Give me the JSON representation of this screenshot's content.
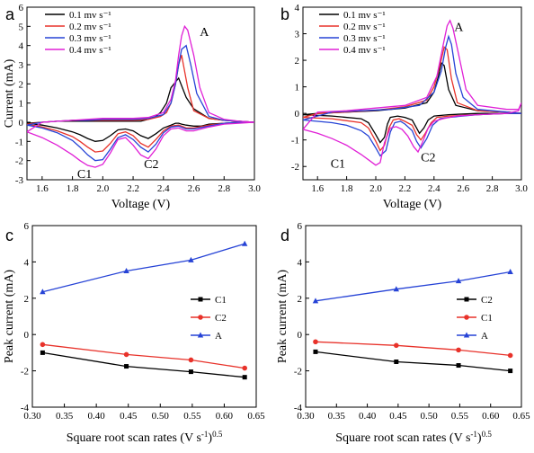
{
  "chart_data": [
    {
      "panel": "a",
      "type": "line",
      "xlabel": "Voltage (V)",
      "ylabel": "Current (mA)",
      "xlim": [
        1.5,
        3.0
      ],
      "ylim": [
        -3,
        6
      ],
      "xticks": [
        "1.6",
        "1.8",
        "2.0",
        "2.2",
        "2.4",
        "2.6",
        "2.8",
        "3.0"
      ],
      "yticks": [
        "-3",
        "-2",
        "-1",
        "0",
        "1",
        "2",
        "3",
        "4",
        "5",
        "6"
      ],
      "legend_position": "top-left",
      "annotations": [
        {
          "text": "A",
          "x": 2.67,
          "y": 4.5
        },
        {
          "text": "C1",
          "x": 1.88,
          "y": -2.9
        },
        {
          "text": "C2",
          "x": 2.32,
          "y": -2.4
        }
      ],
      "series": [
        {
          "name": "0.1 mv s⁻¹",
          "color": "#000000",
          "x": [
            1.5,
            1.6,
            1.7,
            1.8,
            1.85,
            1.9,
            1.95,
            2.0,
            2.05,
            2.1,
            2.15,
            2.2,
            2.25,
            2.3,
            2.35,
            2.4,
            2.45,
            2.48,
            2.5,
            2.52,
            2.55,
            2.6,
            2.65,
            2.7,
            2.8,
            2.9,
            3.0,
            2.9,
            2.8,
            2.7,
            2.6,
            2.55,
            2.5,
            2.45,
            2.42,
            2.38,
            2.34,
            2.3,
            2.25,
            2.2,
            2.1,
            2.0,
            1.9,
            1.8,
            1.7,
            1.6,
            1.5
          ],
          "y": [
            -0.05,
            -0.15,
            -0.3,
            -0.5,
            -0.65,
            -0.85,
            -1.0,
            -0.95,
            -0.7,
            -0.4,
            -0.35,
            -0.45,
            -0.7,
            -0.85,
            -0.6,
            -0.3,
            -0.15,
            -0.05,
            -0.05,
            -0.1,
            -0.15,
            -0.2,
            -0.2,
            -0.1,
            -0.05,
            0,
            0,
            0.05,
            0.1,
            0.2,
            0.7,
            1.3,
            2.3,
            1.8,
            1.0,
            0.5,
            0.25,
            0.15,
            0.05,
            0.05,
            0.05,
            0.05,
            0.05,
            0.05,
            0.05,
            0.0,
            -0.05
          ]
        },
        {
          "name": "0.2 mv s⁻¹",
          "color": "#e8322a",
          "x": [
            1.5,
            1.6,
            1.7,
            1.8,
            1.85,
            1.9,
            1.95,
            2.0,
            2.05,
            2.1,
            2.15,
            2.2,
            2.25,
            2.3,
            2.35,
            2.4,
            2.45,
            2.5,
            2.52,
            2.55,
            2.6,
            2.7,
            2.8,
            2.9,
            3.0,
            2.9,
            2.8,
            2.7,
            2.6,
            2.56,
            2.52,
            2.5,
            2.48,
            2.45,
            2.42,
            2.38,
            2.3,
            2.2,
            2.1,
            2.0,
            1.9,
            1.8,
            1.7,
            1.6,
            1.5
          ],
          "y": [
            -0.1,
            -0.25,
            -0.45,
            -0.75,
            -1.0,
            -1.3,
            -1.55,
            -1.5,
            -1.1,
            -0.6,
            -0.5,
            -0.7,
            -1.1,
            -1.3,
            -0.9,
            -0.45,
            -0.2,
            -0.15,
            -0.2,
            -0.3,
            -0.3,
            -0.15,
            -0.05,
            0,
            0,
            0.05,
            0.1,
            0.2,
            0.6,
            1.8,
            3.5,
            3.0,
            2.0,
            1.0,
            0.5,
            0.3,
            0.15,
            0.1,
            0.1,
            0.1,
            0.1,
            0.1,
            0.05,
            0.0,
            -0.1
          ]
        },
        {
          "name": "0.3 mv s⁻¹",
          "color": "#2643d6",
          "x": [
            1.5,
            1.6,
            1.7,
            1.8,
            1.85,
            1.9,
            1.95,
            2.0,
            2.05,
            2.1,
            2.15,
            2.2,
            2.25,
            2.3,
            2.35,
            2.4,
            2.45,
            2.5,
            2.55,
            2.6,
            2.7,
            2.8,
            2.9,
            3.0,
            2.9,
            2.8,
            2.7,
            2.62,
            2.58,
            2.55,
            2.52,
            2.5,
            2.48,
            2.45,
            2.4,
            2.3,
            2.2,
            2.1,
            2.0,
            1.9,
            1.8,
            1.7,
            1.6,
            1.5
          ],
          "y": [
            -0.15,
            -0.3,
            -0.55,
            -0.95,
            -1.3,
            -1.7,
            -2.0,
            -1.95,
            -1.4,
            -0.8,
            -0.65,
            -0.9,
            -1.3,
            -1.55,
            -1.15,
            -0.55,
            -0.25,
            -0.2,
            -0.35,
            -0.35,
            -0.2,
            -0.05,
            0,
            0,
            0.05,
            0.1,
            0.3,
            1.5,
            3.0,
            4.0,
            3.8,
            3.0,
            2.0,
            1.0,
            0.4,
            0.2,
            0.15,
            0.15,
            0.15,
            0.1,
            0.1,
            0.05,
            0.0,
            -0.15
          ]
        },
        {
          "name": "0.4 mv s⁻¹",
          "color": "#e020d6",
          "x": [
            1.5,
            1.6,
            1.7,
            1.8,
            1.85,
            1.9,
            1.95,
            2.0,
            2.05,
            2.1,
            2.15,
            2.2,
            2.25,
            2.3,
            2.35,
            2.4,
            2.45,
            2.5,
            2.55,
            2.6,
            2.7,
            2.8,
            2.9,
            3.0,
            2.9,
            2.8,
            2.7,
            2.64,
            2.6,
            2.56,
            2.54,
            2.52,
            2.5,
            2.48,
            2.45,
            2.4,
            2.3,
            2.2,
            2.1,
            2.0,
            1.9,
            1.8,
            1.7,
            1.6,
            1.5
          ],
          "y": [
            -0.5,
            -0.8,
            -1.2,
            -1.7,
            -2.0,
            -2.25,
            -2.35,
            -2.2,
            -1.6,
            -0.9,
            -0.8,
            -1.2,
            -1.7,
            -1.9,
            -1.4,
            -0.7,
            -0.35,
            -0.3,
            -0.45,
            -0.45,
            -0.25,
            -0.1,
            -0.05,
            0,
            0.05,
            0.15,
            0.5,
            1.8,
            3.5,
            4.8,
            5.0,
            4.5,
            3.5,
            2.2,
            1.2,
            0.5,
            0.25,
            0.2,
            0.2,
            0.2,
            0.15,
            0.1,
            0.05,
            0.0,
            -0.5
          ]
        }
      ]
    },
    {
      "panel": "b",
      "type": "line",
      "xlabel": "Voltage (V)",
      "ylabel": "",
      "xlim": [
        1.5,
        3.0
      ],
      "ylim": [
        -2.5,
        4
      ],
      "xticks": [
        "1.6",
        "1.8",
        "2.0",
        "2.2",
        "2.4",
        "2.6",
        "2.8",
        "3.0"
      ],
      "yticks": [
        "-2",
        "-1",
        "0",
        "1",
        "2",
        "3",
        "4"
      ],
      "legend_position": "top-left",
      "annotations": [
        {
          "text": "A",
          "x": 2.57,
          "y": 3.1
        },
        {
          "text": "C1",
          "x": 1.74,
          "y": -2.05
        },
        {
          "text": "C2",
          "x": 2.36,
          "y": -1.8
        }
      ],
      "series": [
        {
          "name": "0.1 mv s⁻¹",
          "color": "#000000",
          "x": [
            1.5,
            1.7,
            1.9,
            1.95,
            2.0,
            2.03,
            2.06,
            2.08,
            2.1,
            2.15,
            2.2,
            2.25,
            2.28,
            2.3,
            2.33,
            2.36,
            2.4,
            2.5,
            2.7,
            2.9,
            3.0,
            2.9,
            2.7,
            2.55,
            2.5,
            2.47,
            2.45,
            2.43,
            2.4,
            2.35,
            2.2,
            2.0,
            1.8,
            1.6,
            1.5
          ],
          "y": [
            -0.05,
            -0.1,
            -0.2,
            -0.35,
            -0.8,
            -1.1,
            -0.9,
            -0.4,
            -0.15,
            -0.1,
            -0.15,
            -0.25,
            -0.55,
            -0.75,
            -0.55,
            -0.25,
            -0.1,
            -0.05,
            0,
            0,
            0,
            0.05,
            0.1,
            0.3,
            0.9,
            1.8,
            1.9,
            1.4,
            0.8,
            0.4,
            0.2,
            0.1,
            0.05,
            0.0,
            -0.05
          ]
        },
        {
          "name": "0.2 mv s⁻¹",
          "color": "#e8322a",
          "x": [
            1.5,
            1.7,
            1.9,
            1.95,
            2.0,
            2.03,
            2.06,
            2.09,
            2.12,
            2.16,
            2.2,
            2.25,
            2.28,
            2.31,
            2.34,
            2.38,
            2.42,
            2.5,
            2.7,
            2.9,
            3.0,
            2.9,
            2.7,
            2.56,
            2.52,
            2.49,
            2.47,
            2.44,
            2.4,
            2.35,
            2.2,
            2.0,
            1.8,
            1.6,
            1.5
          ],
          "y": [
            -0.15,
            -0.2,
            -0.35,
            -0.55,
            -1.05,
            -1.4,
            -1.2,
            -0.55,
            -0.25,
            -0.2,
            -0.3,
            -0.45,
            -0.8,
            -1.0,
            -0.75,
            -0.35,
            -0.15,
            -0.1,
            -0.05,
            0,
            0,
            0.05,
            0.1,
            0.4,
            1.3,
            2.4,
            2.5,
            1.8,
            1.0,
            0.5,
            0.25,
            0.12,
            0.05,
            0.0,
            -0.15
          ]
        },
        {
          "name": "0.3 mv s⁻¹",
          "color": "#2643d6",
          "x": [
            1.5,
            1.7,
            1.8,
            1.9,
            1.95,
            2.0,
            2.03,
            2.07,
            2.1,
            2.13,
            2.17,
            2.2,
            2.25,
            2.28,
            2.31,
            2.35,
            2.39,
            2.44,
            2.5,
            2.7,
            2.9,
            3.0,
            2.9,
            2.7,
            2.6,
            2.55,
            2.52,
            2.5,
            2.48,
            2.45,
            2.4,
            2.3,
            2.1,
            1.9,
            1.7,
            1.5
          ],
          "y": [
            -0.25,
            -0.35,
            -0.45,
            -0.65,
            -0.85,
            -1.3,
            -1.6,
            -1.4,
            -0.7,
            -0.35,
            -0.3,
            -0.4,
            -0.65,
            -1.05,
            -1.3,
            -0.95,
            -0.45,
            -0.2,
            -0.15,
            -0.05,
            0,
            0,
            0.05,
            0.15,
            0.6,
            1.5,
            2.6,
            2.9,
            2.5,
            1.6,
            0.8,
            0.3,
            0.15,
            0.1,
            0.05,
            -0.25
          ]
        },
        {
          "name": "0.4 mv s⁻¹",
          "color": "#e020d6",
          "x": [
            1.5,
            1.6,
            1.7,
            1.8,
            1.9,
            1.95,
            2.0,
            2.03,
            2.06,
            2.1,
            2.14,
            2.18,
            2.22,
            2.26,
            2.29,
            2.32,
            2.36,
            2.4,
            2.46,
            2.55,
            2.7,
            2.9,
            2.98,
            3.0,
            2.98,
            2.9,
            2.7,
            2.62,
            2.57,
            2.53,
            2.51,
            2.49,
            2.46,
            2.42,
            2.35,
            2.2,
            2.0,
            1.8,
            1.6,
            1.5
          ],
          "y": [
            -0.6,
            -0.75,
            -0.95,
            -1.2,
            -1.55,
            -1.75,
            -1.95,
            -1.85,
            -1.1,
            -0.55,
            -0.5,
            -0.6,
            -0.85,
            -1.25,
            -1.45,
            -1.1,
            -0.55,
            -0.3,
            -0.2,
            -0.1,
            -0.05,
            0.0,
            0.1,
            0.4,
            0.15,
            0.15,
            0.3,
            0.9,
            2.2,
            3.2,
            3.5,
            3.3,
            2.5,
            1.4,
            0.6,
            0.3,
            0.2,
            0.1,
            0.05,
            -0.6
          ]
        }
      ]
    },
    {
      "panel": "c",
      "type": "line",
      "xlabel": "Square root scan rates (V s",
      "xlabel_sup1": "-1",
      "xlabel_mid": ")",
      "xlabel_sup2": "0.5",
      "ylabel": "Peak current (mA)",
      "xlim": [
        0.3,
        0.65
      ],
      "ylim": [
        -4,
        6
      ],
      "xticks": [
        "0.30",
        "0.35",
        "0.40",
        "0.45",
        "0.50",
        "0.55",
        "0.60",
        "0.65"
      ],
      "yticks": [
        "-4",
        "-2",
        "0",
        "2",
        "4",
        "6"
      ],
      "legend_position": "center-right",
      "series": [
        {
          "name": "C1",
          "color": "#000000",
          "marker": "square",
          "x": [
            0.316,
            0.447,
            0.548,
            0.632
          ],
          "y": [
            -1.0,
            -1.75,
            -2.05,
            -2.35
          ]
        },
        {
          "name": "C2",
          "color": "#e8322a",
          "marker": "circle",
          "x": [
            0.316,
            0.447,
            0.548,
            0.632
          ],
          "y": [
            -0.55,
            -1.1,
            -1.4,
            -1.85
          ]
        },
        {
          "name": "A",
          "color": "#2643d6",
          "marker": "triangle",
          "x": [
            0.316,
            0.447,
            0.548,
            0.632
          ],
          "y": [
            2.35,
            3.5,
            4.1,
            5.0
          ]
        }
      ]
    },
    {
      "panel": "d",
      "type": "line",
      "xlabel": "Square root scan rates (V s",
      "xlabel_sup1": "-1",
      "xlabel_mid": ")",
      "xlabel_sup2": "0.5",
      "ylabel": "Peak current (mA)",
      "xlim": [
        0.3,
        0.65
      ],
      "ylim": [
        -4,
        6
      ],
      "xticks": [
        "0.30",
        "0.35",
        "0.40",
        "0.45",
        "0.50",
        "0.55",
        "0.60",
        "0.65"
      ],
      "yticks": [
        "-4",
        "-2",
        "0",
        "2",
        "4",
        "6"
      ],
      "legend_position": "center-right",
      "series": [
        {
          "name": "C2",
          "color": "#000000",
          "marker": "square",
          "x": [
            0.316,
            0.447,
            0.548,
            0.632
          ],
          "y": [
            -0.95,
            -1.5,
            -1.7,
            -2.0
          ]
        },
        {
          "name": "C1",
          "color": "#e8322a",
          "marker": "circle",
          "x": [
            0.316,
            0.447,
            0.548,
            0.632
          ],
          "y": [
            -0.4,
            -0.6,
            -0.85,
            -1.15
          ]
        },
        {
          "name": "A",
          "color": "#2643d6",
          "marker": "triangle",
          "x": [
            0.316,
            0.447,
            0.548,
            0.632
          ],
          "y": [
            1.85,
            2.5,
            2.95,
            3.45
          ]
        }
      ]
    }
  ]
}
